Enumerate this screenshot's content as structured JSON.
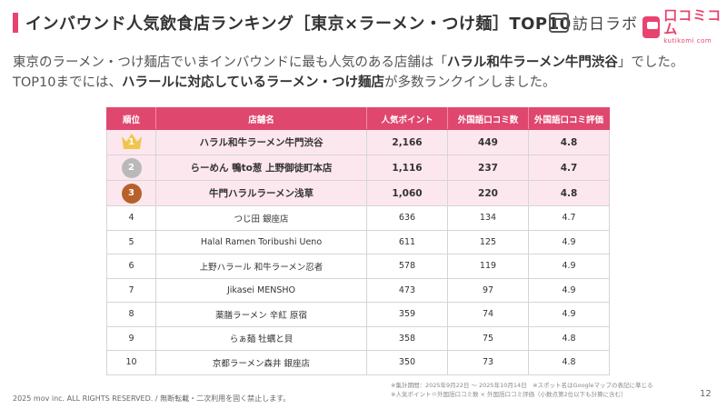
{
  "header": {
    "title": "インバウンド人気飲食店ランキング［東京×ラーメン・つけ麺］TOP10",
    "logo_houjin": "訪日ラボ",
    "logo_kuchikomi": "口コミコム",
    "logo_kuchikomi_sub": "kutikomi com"
  },
  "lead": {
    "part1": "東京のラーメン・つけ麺店でいまインバウンドに最も人気のある店舗は「",
    "bold1": "ハラル和牛ラーメン牛門渋谷",
    "part2": "」でした。TOP10までには、",
    "bold2": "ハラールに対応しているラーメン・つけ麺店",
    "part3": "が多数ランクインしました。"
  },
  "table": {
    "headers": [
      "順位",
      "店舗名",
      "人気ポイント",
      "外国語口コミ数",
      "外国語口コミ評価"
    ],
    "rows": [
      {
        "rank": "1",
        "name": "ハラル和牛ラーメン牛門渋谷",
        "points": "2,166",
        "reviews": "449",
        "rating": "4.8"
      },
      {
        "rank": "2",
        "name": "らーめん 鴨to葱 上野御徒町本店",
        "points": "1,116",
        "reviews": "237",
        "rating": "4.7"
      },
      {
        "rank": "3",
        "name": "牛門ハラルラーメン浅草",
        "points": "1,060",
        "reviews": "220",
        "rating": "4.8"
      },
      {
        "rank": "4",
        "name": "つじ田 銀座店",
        "points": "636",
        "reviews": "134",
        "rating": "4.7"
      },
      {
        "rank": "5",
        "name": "Halal Ramen Toribushi Ueno",
        "points": "611",
        "reviews": "125",
        "rating": "4.9"
      },
      {
        "rank": "6",
        "name": "上野ハラール 和牛ラーメン忍者",
        "points": "578",
        "reviews": "119",
        "rating": "4.9"
      },
      {
        "rank": "7",
        "name": "Jikasei MENSHO",
        "points": "473",
        "reviews": "97",
        "rating": "4.9"
      },
      {
        "rank": "8",
        "name": "薬膳ラーメン 辛紅 原宿",
        "points": "359",
        "reviews": "74",
        "rating": "4.9"
      },
      {
        "rank": "9",
        "name": "らぁ麺 牡蠣と貝",
        "points": "358",
        "reviews": "75",
        "rating": "4.8"
      },
      {
        "rank": "10",
        "name": "京都ラーメン森井 銀座店",
        "points": "350",
        "reviews": "73",
        "rating": "4.8"
      }
    ]
  },
  "notes": {
    "line1": "※集計期間：2025年9月22日 〜 2025年10月14日　※スポット名はGoogleマップの表記に準じる",
    "line2": "※人気ポイント＝外国語口コミ数 × 外国語口コミ評価（小数点第2位以下も計算に含む）"
  },
  "footer": {
    "copyright": "2025 mov inc. ALL RIGHTS RESERVED. / 無断転載・二次利用を固く禁止します。",
    "page_number": "12"
  },
  "colors": {
    "accent": "#e0476e",
    "top_row_bg": "#fde7ee",
    "gold": "#f1c44b",
    "silver": "#b9b9b9",
    "bronze": "#b7612a"
  }
}
